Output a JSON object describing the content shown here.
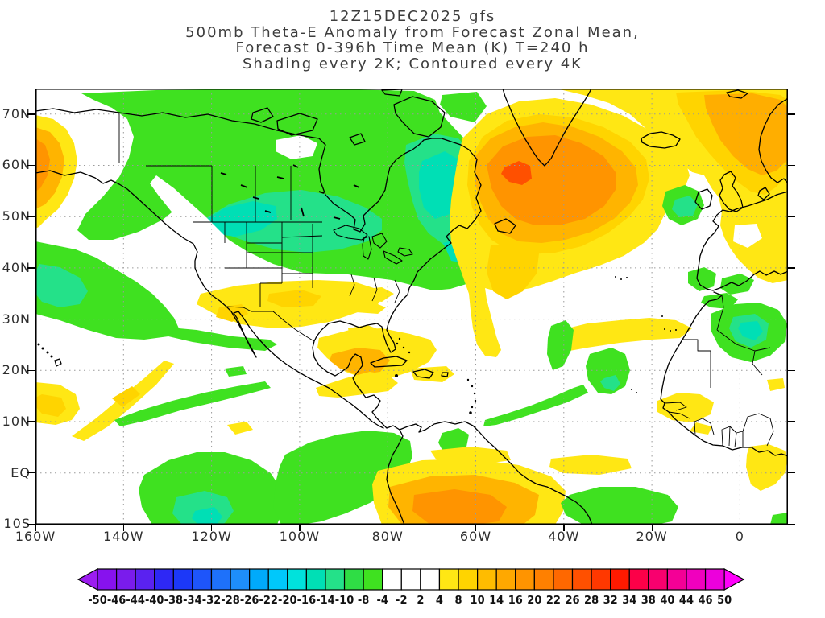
{
  "title": {
    "lines": [
      "12Z15DEC2025 gfs",
      "500mb Theta-E Anomaly from Forecast Zonal Mean,",
      "Forecast 0-396h Time Mean (K) T=240 h",
      "Shading every 2K; Contoured every 4K"
    ]
  },
  "chart_data": {
    "type": "heatmap",
    "subtype": "filled_contour_weather_map",
    "model": "gfs",
    "init_time": "12Z15DEC2025",
    "variable": "500mb Theta-E Anomaly from Forecast Zonal Mean",
    "statistic": "Forecast 0-396h Time Mean (K)",
    "valid_time": "T=240 h",
    "shading_interval": "every 2K",
    "contour_interval": "every 4K",
    "units": "K",
    "map_extent": {
      "lon_range": [
        "160W",
        "10E"
      ],
      "lat_range": [
        "10S",
        "75N"
      ]
    },
    "x_ticks": [
      "160W",
      "140W",
      "120W",
      "100W",
      "80W",
      "60W",
      "40W",
      "20W",
      "0"
    ],
    "y_ticks": [
      "70N",
      "60N",
      "50N",
      "40N",
      "30N",
      "20N",
      "10N",
      "EQ",
      "10S"
    ],
    "grid": "dotted graticule every 10 deg lat / 20 deg lon",
    "colorbar": {
      "labels": [
        "-50",
        "-46",
        "-44",
        "-40",
        "-38",
        "-34",
        "-32",
        "-28",
        "-26",
        "-22",
        "-20",
        "-16",
        "-14",
        "-10",
        "-8",
        "-4",
        "-2",
        "2",
        "4",
        "8",
        "10",
        "14",
        "16",
        "20",
        "22",
        "26",
        "28",
        "32",
        "34",
        "38",
        "40",
        "44",
        "46",
        "50"
      ],
      "cell_colors": [
        "#8712EE",
        "#7A1CEC",
        "#5A22F0",
        "#2E28F5",
        "#1C38F8",
        "#1E55FA",
        "#1E71FA",
        "#1E8EFA",
        "#00AAFB",
        "#00C8FB",
        "#00E2DC",
        "#00DFB5",
        "#24E189",
        "#2FDD45",
        "#3FE120",
        "#FFFFFF",
        "#FFFFFF",
        "#FFFFFF",
        "#FFE714",
        "#FFD400",
        "#FFBC00",
        "#FFA800",
        "#FF9400",
        "#FF8000",
        "#FF6800",
        "#FF5000",
        "#FF3800",
        "#FF1A00",
        "#FC0048",
        "#F8006E",
        "#F40096",
        "#F000BE",
        "#EC00DC"
      ],
      "below_range_arrow_color": "#9C1CF0",
      "above_range_arrow_color": "#FF00FA"
    },
    "anomaly_features": [
      "Negative anomaly (-4 to -14 K, green/teal) covering most of Canada and the northern United States",
      "Strong positive anomaly (+10 to +26 K, orange/red core) over southern Greenland and the central North Atlantic",
      "Positive anomaly (+8 to +20 K) over Iceland, the Norwegian Sea and Scandinavia",
      "Positive anomaly (+4 to +16 K) over the Gulf of Alaska at the western map edge",
      "Yellow +4 to +10 K band across the southwestern/central United States and the Gulf of Mexico / Yucatan",
      "Negative anomaly band over the midlatitude Northeast Pacific with teal core",
      "Small negative anomaly (green with teal core) just west of Ireland",
      "Negative anomaly (green with teal core) over northwest Africa (Algeria region)",
      "Positive anomaly (+4 to +14 K) over equatorial South America at the bottom of the map",
      "Scattered negative anomalies along the equatorial Pacific and central tropical Atlantic",
      "Yellow positive streaks near Senegal, the ITCZ region and the Gulf of Guinea coast"
    ]
  }
}
